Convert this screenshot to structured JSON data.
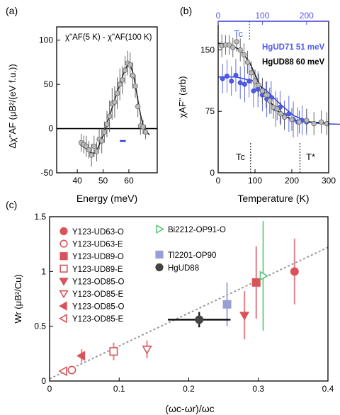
{
  "panels": {
    "a": {
      "label": "(a)"
    },
    "b": {
      "label": "(b)"
    },
    "c": {
      "label": "(c)"
    }
  },
  "chart_data": [
    {
      "id": "a",
      "type": "scatter",
      "annotation": "χ\"AF(5 K) - χ\"AF(100 K)",
      "xlabel": "Energy (meV)",
      "ylabel": "Δχ\"AF (μB²/(eV f.u.))",
      "xlim": [
        32,
        71
      ],
      "ylim": [
        -50,
        115
      ],
      "xticks": [
        40,
        50,
        60
      ],
      "yticks": [
        -50,
        0,
        50,
        100
      ],
      "zero_line": true,
      "points": [
        {
          "x": 41.5,
          "y": -16,
          "e": 10
        },
        {
          "x": 42.5,
          "y": -18,
          "e": 10
        },
        {
          "x": 43.5,
          "y": -20,
          "e": 12
        },
        {
          "x": 44.5,
          "y": -24,
          "e": 10
        },
        {
          "x": 45.5,
          "y": -30,
          "e": 13
        },
        {
          "x": 46.5,
          "y": -20,
          "e": 12
        },
        {
          "x": 47.5,
          "y": -26,
          "e": 11
        },
        {
          "x": 48.5,
          "y": -12,
          "e": 12
        },
        {
          "x": 49.5,
          "y": -14,
          "e": 14
        },
        {
          "x": 50.5,
          "y": -4,
          "e": 12
        },
        {
          "x": 51.5,
          "y": 5,
          "e": 15
        },
        {
          "x": 52.5,
          "y": 14,
          "e": 18
        },
        {
          "x": 53.5,
          "y": 28,
          "e": 18
        },
        {
          "x": 54.5,
          "y": 30,
          "e": 18
        },
        {
          "x": 55.5,
          "y": 40,
          "e": 18
        },
        {
          "x": 56.5,
          "y": 50,
          "e": 18
        },
        {
          "x": 57.5,
          "y": 55,
          "e": 16
        },
        {
          "x": 58.5,
          "y": 66,
          "e": 16
        },
        {
          "x": 59.5,
          "y": 74,
          "e": 14
        },
        {
          "x": 60.5,
          "y": 72,
          "e": 14
        },
        {
          "x": 61.5,
          "y": 60,
          "e": 15
        },
        {
          "x": 62.5,
          "y": 48,
          "e": 13
        },
        {
          "x": 63.5,
          "y": 25,
          "e": 12
        },
        {
          "x": 64.5,
          "y": 3,
          "e": 10
        },
        {
          "x": 65.5,
          "y": 2,
          "e": 8
        },
        {
          "x": 66.5,
          "y": -4,
          "e": 8
        }
      ],
      "fit": [
        [
          41,
          -18
        ],
        [
          43,
          -22
        ],
        [
          45,
          -27
        ],
        [
          46.5,
          -28
        ],
        [
          48,
          -22
        ],
        [
          50,
          -8
        ],
        [
          52,
          10
        ],
        [
          54,
          28
        ],
        [
          56,
          46
        ],
        [
          58,
          63
        ],
        [
          59.5,
          72
        ],
        [
          60.5,
          72
        ],
        [
          61.5,
          64
        ],
        [
          62.5,
          50
        ],
        [
          63.5,
          32
        ],
        [
          64.5,
          16
        ],
        [
          65.5,
          4
        ],
        [
          66.5,
          -3
        ],
        [
          68,
          -7
        ]
      ],
      "resolution_bar": {
        "x": [
          56.5,
          58.8
        ],
        "y": -14,
        "color": "#3535e0"
      }
    },
    {
      "id": "b",
      "type": "scatter",
      "xlabel": "Temperature (K)",
      "ylabel": "χAF\" (arb)",
      "xlim": [
        0,
        300
      ],
      "ylim": [
        0,
        185
      ],
      "xticks": [
        0,
        100,
        200,
        300
      ],
      "yticks": [
        0,
        75,
        150
      ],
      "top_xlim": [
        0,
        250
      ],
      "top_xticks": [
        0,
        100,
        200
      ],
      "top_axis_color": "#5555ee",
      "annotations": {
        "tc_top": "Tc",
        "tc_bottom": "Tc",
        "tstar": "T*"
      },
      "markers": {
        "tc_top_x": 71,
        "tc_bottom_x": 88,
        "tstar_x": 222
      },
      "series": [
        {
          "name": "HgUD71 51 meV",
          "color": "#4f5be8",
          "points": [
            {
              "x": 10,
              "y": 115,
              "e": 18
            },
            {
              "x": 20,
              "y": 118,
              "e": 20
            },
            {
              "x": 30,
              "y": 112,
              "e": 18
            },
            {
              "x": 40,
              "y": 119,
              "e": 20
            },
            {
              "x": 50,
              "y": 110,
              "e": 20
            },
            {
              "x": 60,
              "y": 108,
              "e": 22
            },
            {
              "x": 70,
              "y": 112,
              "e": 20
            },
            {
              "x": 80,
              "y": 100,
              "e": 20
            },
            {
              "x": 90,
              "y": 102,
              "e": 22
            },
            {
              "x": 100,
              "y": 95,
              "e": 20
            },
            {
              "x": 110,
              "y": 90,
              "e": 22
            },
            {
              "x": 120,
              "y": 92,
              "e": 20
            },
            {
              "x": 130,
              "y": 78,
              "e": 22
            },
            {
              "x": 140,
              "y": 80,
              "e": 20
            },
            {
              "x": 150,
              "y": 70,
              "e": 18
            },
            {
              "x": 160,
              "y": 72,
              "e": 22
            },
            {
              "x": 170,
              "y": 65,
              "e": 22
            },
            {
              "x": 180,
              "y": 62,
              "e": 18
            },
            {
              "x": 190,
              "y": 64,
              "e": 18
            },
            {
              "x": 200,
              "y": 62,
              "e": 16
            }
          ],
          "fit": [
            [
              0,
              117
            ],
            [
              40,
              117
            ],
            [
              80,
              112
            ],
            [
              110,
              100
            ],
            [
              140,
              84
            ],
            [
              170,
              70
            ],
            [
              200,
              63
            ],
            [
              230,
              60
            ],
            [
              290,
              59
            ]
          ]
        },
        {
          "name": "HgUD88 60 meV",
          "color": "#111111",
          "points": [
            {
              "x": 10,
              "y": 155,
              "e": 14
            },
            {
              "x": 20,
              "y": 156,
              "e": 12
            },
            {
              "x": 30,
              "y": 156,
              "e": 12
            },
            {
              "x": 40,
              "y": 153,
              "e": 12
            },
            {
              "x": 50,
              "y": 160,
              "e": 12
            },
            {
              "x": 60,
              "y": 150,
              "e": 14
            },
            {
              "x": 70,
              "y": 144,
              "e": 14
            },
            {
              "x": 80,
              "y": 135,
              "e": 14
            },
            {
              "x": 90,
              "y": 122,
              "e": 14
            },
            {
              "x": 100,
              "y": 112,
              "e": 14
            },
            {
              "x": 110,
              "y": 107,
              "e": 14
            },
            {
              "x": 120,
              "y": 100,
              "e": 16
            },
            {
              "x": 130,
              "y": 95,
              "e": 16
            },
            {
              "x": 140,
              "y": 88,
              "e": 16
            },
            {
              "x": 150,
              "y": 80,
              "e": 14
            },
            {
              "x": 160,
              "y": 78,
              "e": 14
            },
            {
              "x": 170,
              "y": 72,
              "e": 14
            },
            {
              "x": 180,
              "y": 68,
              "e": 14
            },
            {
              "x": 200,
              "y": 65,
              "e": 14
            },
            {
              "x": 220,
              "y": 62,
              "e": 14
            },
            {
              "x": 240,
              "y": 64,
              "e": 14
            },
            {
              "x": 260,
              "y": 60,
              "e": 14
            },
            {
              "x": 280,
              "y": 62,
              "e": 14
            },
            {
              "x": 295,
              "y": 60,
              "e": 14
            }
          ],
          "fit": [
            [
              0,
              158
            ],
            [
              30,
              157
            ],
            [
              60,
              150
            ],
            [
              85,
              135
            ],
            [
              110,
              110
            ],
            [
              140,
              87
            ],
            [
              170,
              72
            ],
            [
              200,
              65
            ],
            [
              240,
              62
            ],
            [
              300,
              61
            ]
          ]
        }
      ]
    },
    {
      "id": "c",
      "type": "scatter",
      "xlabel": "(ωc-ωr)/ωc",
      "ylabel": "Wr (μB²/Cu)",
      "xlim": [
        0,
        0.4
      ],
      "ylim": [
        0,
        1.5
      ],
      "xticks": [
        0,
        0.1,
        0.2,
        0.3,
        0.4
      ],
      "yticks": [
        0,
        0.5,
        1,
        1.5
      ],
      "trend_line": [
        [
          0,
          0.02
        ],
        [
          0.4,
          1.22
        ]
      ],
      "legend_placement": "top-left",
      "series": [
        {
          "name": "Y123-UD63-O",
          "marker": "circle",
          "filled": true,
          "color": "#d9545a",
          "points": [
            {
              "x": 0.352,
              "y": 1.0,
              "ey": 0.3
            }
          ]
        },
        {
          "name": "Y123-UD63-E",
          "marker": "circle",
          "filled": false,
          "color": "#d9545a",
          "points": [
            {
              "x": 0.032,
              "y": 0.1,
              "ey": 0.02
            }
          ]
        },
        {
          "name": "Y123-UD89-O",
          "marker": "square",
          "filled": true,
          "color": "#d9545a",
          "points": [
            {
              "x": 0.297,
              "y": 0.9,
              "ey": 0.33
            }
          ]
        },
        {
          "name": "Y123-UD89-E",
          "marker": "square",
          "filled": false,
          "color": "#d9545a",
          "points": [
            {
              "x": 0.092,
              "y": 0.27,
              "ey": 0.08
            }
          ]
        },
        {
          "name": "Y123-OD85-O",
          "marker": "triangle-down",
          "filled": true,
          "color": "#d9545a",
          "points": [
            {
              "x": 0.28,
              "y": 0.6,
              "ey": 0.22
            }
          ]
        },
        {
          "name": "Y123-OD85-E",
          "marker": "triangle-down",
          "filled": false,
          "color": "#d9545a",
          "points": [
            {
              "x": 0.14,
              "y": 0.29,
              "ey": 0.08
            }
          ]
        },
        {
          "name": "Y123-OD85-O",
          "marker": "triangle-left",
          "filled": true,
          "color": "#d9545a",
          "points": [
            {
              "x": 0.046,
              "y": 0.23,
              "ey": 0.06
            }
          ]
        },
        {
          "name": "Y123-OD85-E",
          "marker": "triangle-left",
          "filled": false,
          "color": "#d9545a",
          "points": [
            {
              "x": 0.02,
              "y": 0.09,
              "ey": 0.02
            }
          ]
        },
        {
          "name": "Bi2212-OP91-O",
          "marker": "triangle-right",
          "filled": false,
          "color": "#5fc47a",
          "points": [
            {
              "x": 0.307,
              "y": 0.96,
              "ey": 0.5
            }
          ]
        },
        {
          "name": "Tl2201-OP90",
          "marker": "square",
          "filled": true,
          "color": "#9a9ed6",
          "points": [
            {
              "x": 0.255,
              "y": 0.7,
              "ey": 0.2
            }
          ]
        },
        {
          "name": "HgUD88",
          "marker": "circle",
          "filled": true,
          "color": "#444444",
          "points": [
            {
              "x": 0.215,
              "y": 0.56,
              "ey": 0.07,
              "ex": 0.045
            }
          ]
        }
      ]
    }
  ]
}
